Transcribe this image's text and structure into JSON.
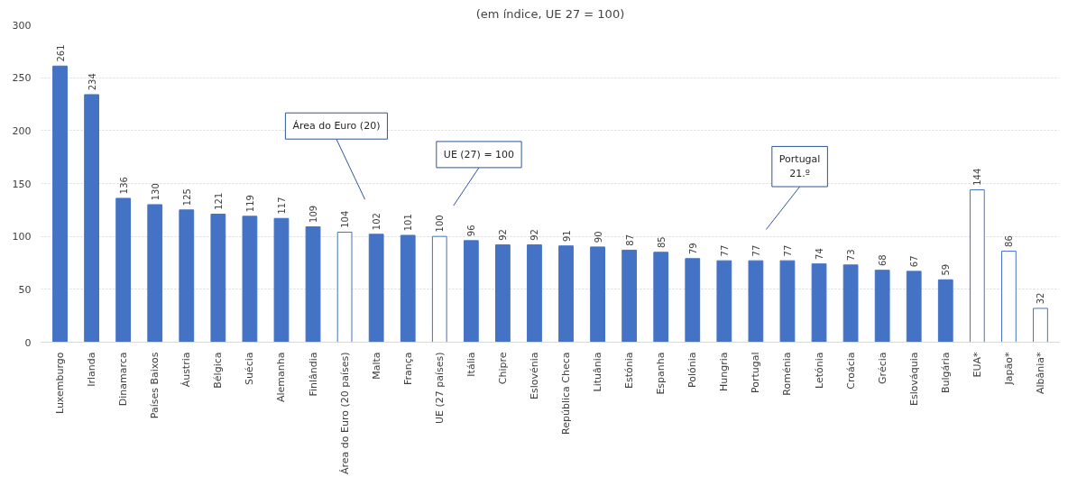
{
  "chart_data": {
    "type": "bar",
    "subtitle": "(em índice, UE 27 = 100)",
    "categories": [
      "Luxemburgo",
      "Irlanda",
      "Dinamarca",
      "Países Baixos",
      "Áustria",
      "Bélgica",
      "Suécia",
      "Alemanha",
      "Finlândia",
      "Área do Euro (20 países)",
      "Malta",
      "França",
      "UE (27 países)",
      "Itália",
      "Chipre",
      "Eslovénia",
      "República Checa",
      "Lituânia",
      "Estónia",
      "Espanha",
      "Polónia",
      "Hungria",
      "Portugal",
      "Roménia",
      "Letónia",
      "Croácia",
      "Grécia",
      "Eslováquia",
      "Bulgária",
      "EUA*",
      "Japão*",
      "Albânia*"
    ],
    "values": [
      261,
      234,
      136,
      130,
      125,
      121,
      119,
      117,
      109,
      104,
      102,
      101,
      100,
      96,
      92,
      92,
      91,
      90,
      87,
      85,
      79,
      77,
      77,
      77,
      74,
      73,
      68,
      67,
      59,
      144,
      86,
      32
    ],
    "colors": [
      "#4472c4",
      "#4472c4",
      "#4472c4",
      "#4472c4",
      "#4472c4",
      "#4472c4",
      "#4472c4",
      "#4472c4",
      "#4472c4",
      "#ffffff",
      "#4472c4",
      "#4472c4",
      "#ffffff",
      "#4472c4",
      "#4472c4",
      "#4472c4",
      "#4472c4",
      "#4472c4",
      "#4472c4",
      "#4472c4",
      "#4472c4",
      "#4472c4",
      "#4472c4",
      "#4472c4",
      "#4472c4",
      "#4472c4",
      "#4472c4",
      "#4472c4",
      "#4472c4",
      "#ffffff",
      "#ffffff",
      "#ffffff"
    ],
    "ylim": [
      0,
      300
    ],
    "yticks": [
      0,
      50,
      100,
      150,
      200,
      250,
      300
    ],
    "grid": "y",
    "data_labels": true,
    "annotations": [
      "Área do Euro (20)",
      "UE (27) = 100",
      "Portugal\n21.º"
    ]
  }
}
